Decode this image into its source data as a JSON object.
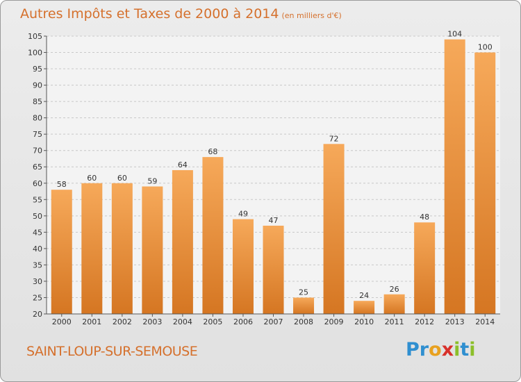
{
  "title": "Autres Impôts et Taxes de 2000 à 2014",
  "subtitle": "(en milliers d'€)",
  "town": "SAINT-LOUP-SUR-SEMOUSE",
  "logo": {
    "letters": [
      "P",
      "r",
      "o",
      "x",
      "i",
      "t",
      "i"
    ],
    "colors": [
      "#2f8fd0",
      "#2f8fd0",
      "#e8a11f",
      "#d8312b",
      "#8cbf2a",
      "#2f8fd0",
      "#8cbf2a"
    ]
  },
  "colors": {
    "bar_light": "#f6a95a",
    "bar_dark": "#d57622",
    "title": "#d5702c",
    "grid": "#c8c8c8",
    "plot_bg": "#f3f3f3"
  },
  "chart_data": {
    "type": "bar",
    "title": "Autres Impôts et Taxes de 2000 à 2014",
    "subtitle": "(en milliers d'€)",
    "xlabel": "",
    "ylabel": "",
    "categories": [
      "2000",
      "2001",
      "2002",
      "2003",
      "2004",
      "2005",
      "2006",
      "2007",
      "2008",
      "2009",
      "2010",
      "2011",
      "2012",
      "2013",
      "2014"
    ],
    "values": [
      58,
      60,
      60,
      59,
      64,
      68,
      49,
      47,
      25,
      72,
      24,
      26,
      48,
      104,
      100
    ],
    "ylim": [
      20,
      105
    ],
    "yticks": [
      20,
      25,
      30,
      35,
      40,
      45,
      50,
      55,
      60,
      65,
      70,
      75,
      80,
      85,
      90,
      95,
      100,
      105
    ],
    "grid": true,
    "legend": "none"
  }
}
